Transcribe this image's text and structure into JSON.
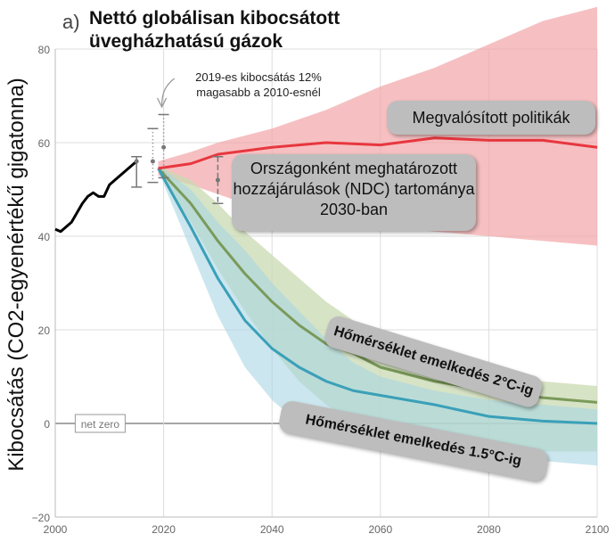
{
  "panel_label": "a)",
  "title": "Nettó globálisan kibocsátott üvegházhatású gázok",
  "annotation_2019": "2019-es kibocsátás 12% magasabb a 2010-esnél",
  "net_zero_label": "net zero",
  "callouts": {
    "policy": "Megvalósított politikák",
    "ndc": "Országonként meghatározott hozzájárulások (NDC) tartománya 2030-ban",
    "two_c": "Hőmérséklet emelkedés 2°C-ig",
    "one_five_c": "Hőmérséklet emelkedés 1.5°C-ig"
  },
  "colors": {
    "historical": "#000000",
    "policy": "#e8373f",
    "policy_band": "#f2a5a8",
    "two_c": "#7a9a5a",
    "two_c_band": "#c9d9b2",
    "one_five_c": "#3aa0b8",
    "one_five_c_band": "#a9d6e3"
  },
  "chart_data": {
    "type": "line",
    "ylabel": "Kibocsátás (CO2-egyenértékű gigatonna)",
    "xlim": [
      2000,
      2100
    ],
    "ylim": [
      -20,
      80
    ],
    "xticks": [
      2000,
      2020,
      2040,
      2060,
      2080,
      2100
    ],
    "yticks": [
      -20,
      0,
      20,
      40,
      60,
      80
    ],
    "grid": true,
    "series": [
      {
        "key": "historical",
        "x": [
          2000,
          2001,
          2002,
          2003,
          2004,
          2005,
          2006,
          2007,
          2008,
          2009,
          2010,
          2011,
          2012,
          2013,
          2014,
          2015
        ],
        "y": [
          41.5,
          41,
          42,
          43,
          45,
          47,
          48.5,
          49.3,
          48.5,
          48.5,
          51,
          52,
          53,
          54,
          55,
          56
        ]
      },
      {
        "key": "policy",
        "x": [
          2019,
          2025,
          2030,
          2040,
          2050,
          2060,
          2070,
          2080,
          2090,
          2100
        ],
        "y": [
          54.5,
          55.5,
          57.5,
          59,
          60,
          59.5,
          61,
          60.5,
          60.5,
          59
        ],
        "band_low": [
          53,
          51,
          49,
          45,
          43,
          42,
          41,
          40,
          39,
          38
        ],
        "band_high": [
          56,
          58,
          60,
          63,
          67,
          72,
          76,
          81,
          86,
          89
        ]
      },
      {
        "key": "two_c",
        "x": [
          2019,
          2025,
          2030,
          2035,
          2040,
          2045,
          2050,
          2055,
          2060,
          2070,
          2080,
          2090,
          2100
        ],
        "y": [
          54.5,
          47,
          39,
          32,
          26,
          21,
          17,
          15,
          12,
          9,
          7,
          5.5,
          4.5
        ],
        "band_low": [
          54,
          43,
          33,
          24,
          16,
          9,
          4,
          0,
          -2,
          -4,
          -5,
          -6,
          -6
        ],
        "band_high": [
          55,
          52,
          47,
          41,
          36,
          31,
          26,
          22,
          19,
          14,
          11,
          9,
          8
        ]
      },
      {
        "key": "one_five_c",
        "x": [
          2019,
          2025,
          2030,
          2035,
          2040,
          2045,
          2050,
          2055,
          2060,
          2070,
          2080,
          2090,
          2100
        ],
        "y": [
          54.5,
          42,
          31,
          22,
          16,
          12,
          9,
          7,
          6,
          4,
          1.5,
          0.5,
          0
        ],
        "band_low": [
          54,
          37,
          23,
          12,
          5,
          0,
          -3,
          -4,
          -5,
          -6,
          -7,
          -8,
          -9
        ],
        "band_high": [
          55,
          50,
          43,
          37,
          30,
          24,
          18,
          13,
          10,
          7,
          5,
          4,
          3
        ]
      }
    ],
    "error_bars": [
      {
        "x": 2015,
        "low": 50.5,
        "high": 57,
        "mid": 56,
        "style": "solid"
      },
      {
        "x": 2018,
        "low": 51.5,
        "high": 63,
        "mid": 56,
        "style": "dotted"
      },
      {
        "x": 2020,
        "low": 52.5,
        "high": 66,
        "mid": 59,
        "style": "dotted"
      },
      {
        "x": 2030,
        "low": 47,
        "high": 57,
        "mid": 52,
        "style": "dashed"
      }
    ]
  }
}
